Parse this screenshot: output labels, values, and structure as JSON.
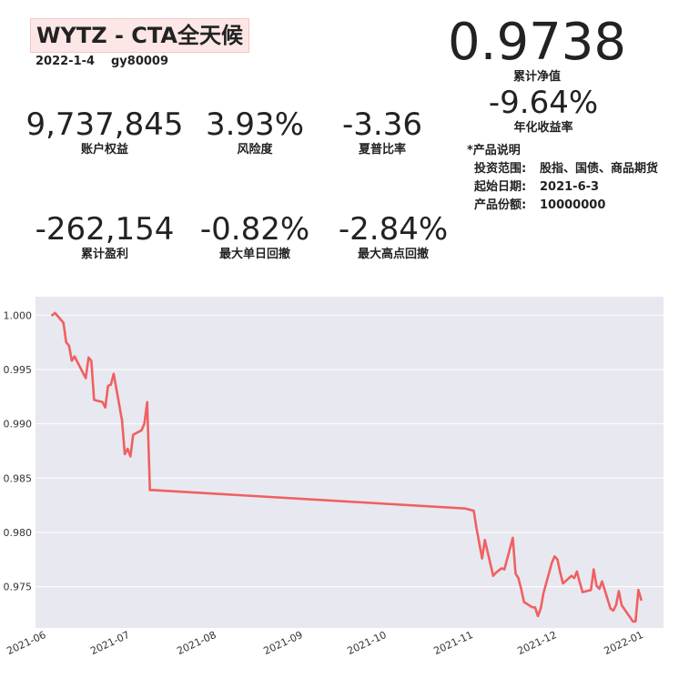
{
  "header": {
    "title": "WYTZ - CTA全天候",
    "date": "2022-1-4",
    "account": "gy80009"
  },
  "nav": {
    "value": "0.9738",
    "label": "累计净值"
  },
  "annual": {
    "value": "-9.64%",
    "label": "年化收益率"
  },
  "metrics": [
    {
      "value": "9,737,845",
      "label": "账户权益"
    },
    {
      "value": "3.93%",
      "label": "风险度"
    },
    {
      "value": "-3.36",
      "label": "夏普比率"
    },
    {
      "value": "-262,154",
      "label": "累计盈利"
    },
    {
      "value": "-0.82%",
      "label": "最大单日回撤"
    },
    {
      "value": "-2.84%",
      "label": "最大高点回撤"
    }
  ],
  "description": {
    "heading": "*产品说明",
    "rows": [
      {
        "key": "投资范围:",
        "value": "股指、国债、商品期货"
      },
      {
        "key": "起始日期:",
        "value": "2021-6-3"
      },
      {
        "key": "产品份额:",
        "value": "10000000"
      }
    ]
  },
  "colors": {
    "line": "#f06060",
    "plot_bg": "#e8e8f0",
    "grid": "#ffffff",
    "title_bg": "#fde6e6"
  },
  "chart_data": {
    "type": "line",
    "title": "",
    "xlabel": "",
    "ylabel": "",
    "grid": true,
    "xlim": [
      "2021-05-28",
      "2022-01-08"
    ],
    "ylim": [
      0.9712,
      1.0017
    ],
    "x_ticks": [
      "2021-06",
      "2021-07",
      "2021-08",
      "2021-09",
      "2021-10",
      "2021-11",
      "2021-12",
      "2022-01"
    ],
    "y_ticks": [
      "1.000",
      "0.995",
      "0.990",
      "0.985",
      "0.980",
      "0.975"
    ],
    "series": [
      {
        "x": [
          "2021-06-03",
          "2021-06-04",
          "2021-06-07",
          "2021-06-08",
          "2021-06-09",
          "2021-06-10",
          "2021-06-11",
          "2021-06-15",
          "2021-06-16",
          "2021-06-17",
          "2021-06-18",
          "2021-06-21",
          "2021-06-22",
          "2021-06-23",
          "2021-06-24",
          "2021-06-25",
          "2021-06-28",
          "2021-06-29",
          "2021-06-30",
          "2021-07-01",
          "2021-07-02",
          "2021-07-05",
          "2021-07-06",
          "2021-07-07",
          "2021-07-08",
          "2021-07-09",
          "2021-10-29",
          "2021-11-01",
          "2021-11-02",
          "2021-11-03",
          "2021-11-04",
          "2021-11-05",
          "2021-11-08",
          "2021-11-09",
          "2021-11-10",
          "2021-11-11",
          "2021-11-12",
          "2021-11-15",
          "2021-11-16",
          "2021-11-17",
          "2021-11-18",
          "2021-11-19",
          "2021-11-22",
          "2021-11-23",
          "2021-11-24",
          "2021-11-25",
          "2021-11-26",
          "2021-11-29",
          "2021-11-30",
          "2021-12-01",
          "2021-12-02",
          "2021-12-03",
          "2021-12-06",
          "2021-12-07",
          "2021-12-08",
          "2021-12-09",
          "2021-12-10",
          "2021-12-13",
          "2021-12-14",
          "2021-12-15",
          "2021-12-16",
          "2021-12-17",
          "2021-12-20",
          "2021-12-21",
          "2021-12-22",
          "2021-12-23",
          "2021-12-24",
          "2021-12-27",
          "2021-12-28",
          "2021-12-29",
          "2021-12-30",
          "2021-12-31"
        ],
        "y": [
          1.0,
          1.0002,
          0.9993,
          0.9975,
          0.9972,
          0.9958,
          0.9962,
          0.9942,
          0.9961,
          0.9958,
          0.9922,
          0.992,
          0.9915,
          0.9935,
          0.9936,
          0.9946,
          0.9903,
          0.9872,
          0.9877,
          0.987,
          0.989,
          0.9894,
          0.99,
          0.992,
          0.9839,
          0.9839,
          0.9822,
          0.982,
          0.9804,
          0.979,
          0.9776,
          0.9793,
          0.976,
          0.9763,
          0.9765,
          0.9767,
          0.9766,
          0.9795,
          0.9762,
          0.9758,
          0.9748,
          0.9736,
          0.9731,
          0.9731,
          0.9723,
          0.973,
          0.9744,
          0.9772,
          0.9778,
          0.9775,
          0.9763,
          0.9753,
          0.976,
          0.9758,
          0.9764,
          0.9754,
          0.9745,
          0.9747,
          0.9766,
          0.9751,
          0.9748,
          0.9755,
          0.973,
          0.9728,
          0.9733,
          0.9746,
          0.9733,
          0.9722,
          0.9718,
          0.9718,
          0.9747,
          0.9738
        ]
      }
    ]
  }
}
